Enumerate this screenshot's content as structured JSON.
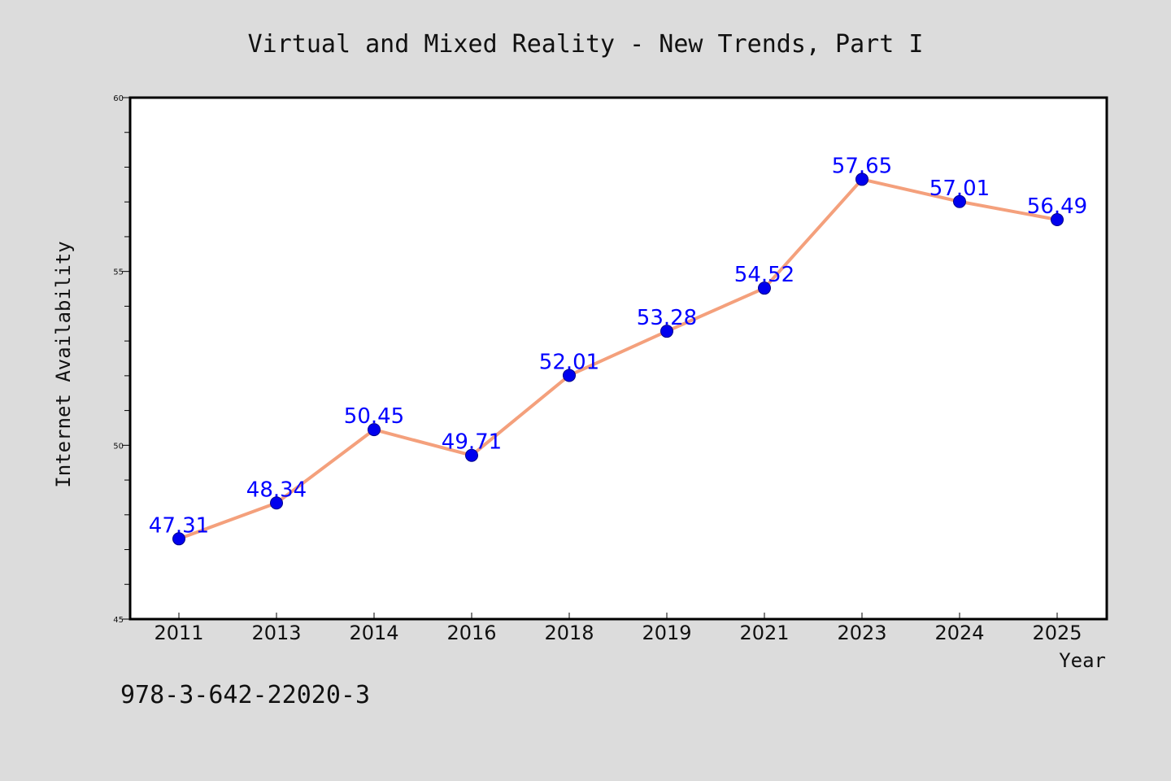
{
  "chart_data": {
    "type": "line",
    "title": "Virtual and Mixed Reality - New Trends, Part I",
    "xlabel": "Year",
    "ylabel": "Internet Availability",
    "categories": [
      "2011",
      "2013",
      "2014",
      "2016",
      "2018",
      "2019",
      "2021",
      "2023",
      "2024",
      "2025"
    ],
    "series": [
      {
        "values": [
          47.31,
          48.34,
          50.45,
          49.71,
          52.01,
          53.28,
          54.52,
          57.65,
          57.01,
          56.49
        ],
        "labels": [
          "47.31",
          "48.34",
          "50.45",
          "49.71",
          "52.01",
          "53.28",
          "54.52",
          "57.65",
          "57.01",
          "56.49"
        ]
      }
    ],
    "ylim": [
      45,
      60
    ],
    "yticks": [
      "45",
      "50",
      "55",
      "60"
    ],
    "yminor_step": 1,
    "grid": false,
    "legend": "none",
    "line_color": "#f4a07c",
    "marker_color": "#0000ee",
    "label_color": "#0000ff",
    "background": "#dcdcdc",
    "plot_background": "#ffffff"
  },
  "footer": {
    "isbn": "978-3-642-22020-3"
  }
}
